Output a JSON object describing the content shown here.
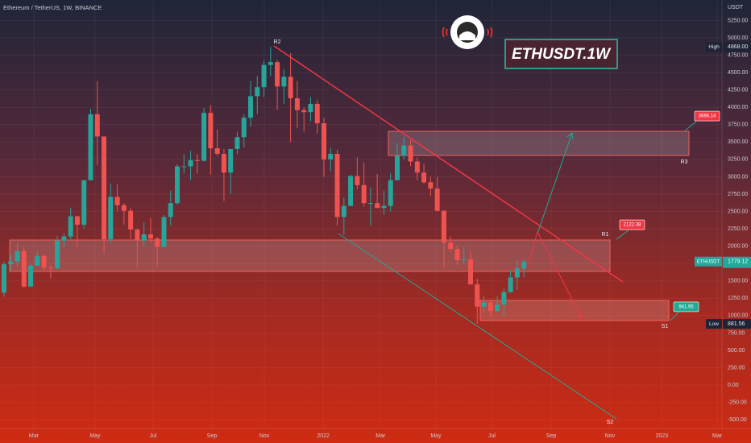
{
  "chart_data": {
    "type": "candlestick",
    "title": "Ethereum / TetherUS, 1W, BINANCE",
    "unit_label": "USDT",
    "symbol_box": "ETHUSDT.1W",
    "up_color": "#26a69a",
    "down_color": "#ef5350",
    "grid": true,
    "candles": {
      "open": [
        1330,
        1740,
        1780,
        1930,
        1420,
        1720,
        1860,
        1690,
        1680,
        2080,
        2140,
        2430,
        2310,
        2950,
        3900,
        3580,
        2100,
        2710,
        2590,
        2510,
        2240,
        2080,
        2170,
        2110,
        1990,
        2420,
        2620,
        3150,
        3150,
        3240,
        3230,
        3920,
        3410,
        3330,
        3060,
        3400,
        3570,
        3850,
        4160,
        4290,
        4610,
        4650,
        4300,
        4440,
        4130,
        3960,
        3930,
        4050,
        3770,
        3250,
        3330,
        2420,
        2580,
        3010,
        2880,
        2620,
        2620,
        2550,
        2580,
        2950,
        3300,
        3450,
        3220,
        3060,
        2920,
        2830,
        2510,
        2050,
        1960,
        1800,
        1810,
        1450,
        1130,
        1190,
        1070,
        1160,
        1340,
        1550,
        1680
      ],
      "high": [
        1780,
        1880,
        2040,
        1990,
        1740,
        1940,
        1880,
        1730,
        2150,
        2180,
        2550,
        2440,
        2950,
        3980,
        4380,
        3580,
        2900,
        2890,
        2620,
        2550,
        2250,
        2340,
        2410,
        2130,
        2450,
        2800,
        3180,
        3330,
        3370,
        3330,
        3990,
        4030,
        3680,
        3400,
        3400,
        3650,
        3900,
        4380,
        4450,
        4670,
        4868,
        4680,
        4550,
        4780,
        4380,
        4000,
        4150,
        4100,
        3850,
        3420,
        3390,
        2700,
        3030,
        3280,
        3200,
        2850,
        3040,
        2800,
        3050,
        3480,
        3580,
        3530,
        3280,
        3190,
        3000,
        3000,
        2520,
        2140,
        2020,
        2000,
        1930,
        1530,
        1280,
        1230,
        1280,
        1390,
        1650,
        1790,
        1810
      ],
      "low": [
        1270,
        1640,
        1700,
        1400,
        1410,
        1720,
        1650,
        1540,
        1670,
        2000,
        2100,
        2000,
        2250,
        2950,
        3170,
        1900,
        2050,
        2500,
        2310,
        2100,
        1700,
        2000,
        2050,
        1720,
        1990,
        2300,
        2600,
        3050,
        2950,
        3050,
        3220,
        3030,
        3300,
        2650,
        2750,
        3320,
        3420,
        3720,
        3900,
        4150,
        4450,
        3960,
        4050,
        3500,
        3700,
        3650,
        3800,
        3620,
        3000,
        3080,
        2300,
        2160,
        2580,
        2820,
        2570,
        2300,
        2550,
        2450,
        2500,
        2950,
        3250,
        3150,
        2950,
        2900,
        2720,
        2500,
        1700,
        1910,
        1730,
        1740,
        1450,
        881.56,
        1040,
        990,
        1060,
        1000,
        1330,
        1370,
        1550
      ],
      "close": [
        1740,
        1780,
        1930,
        1420,
        1720,
        1860,
        1690,
        1680,
        2080,
        2140,
        2430,
        2310,
        2950,
        3900,
        3580,
        2100,
        2710,
        2590,
        2510,
        2240,
        2080,
        2170,
        2110,
        1990,
        2420,
        2620,
        3150,
        3150,
        3240,
        3230,
        3920,
        3410,
        3330,
        3060,
        3400,
        3570,
        3850,
        4160,
        4290,
        4610,
        4650,
        4300,
        4440,
        4130,
        3960,
        3930,
        4050,
        3770,
        3250,
        3330,
        2420,
        2580,
        3010,
        2880,
        2620,
        2620,
        2550,
        2580,
        2950,
        3300,
        3450,
        3220,
        3060,
        2920,
        2830,
        2510,
        2050,
        1960,
        1800,
        1810,
        1450,
        1130,
        1190,
        1070,
        1160,
        1340,
        1550,
        1680,
        1779.12
      ]
    },
    "ylim": [
      -625,
      5545
    ],
    "yticks": [
      {
        "value": 5250,
        "label": "5250.00"
      },
      {
        "value": 5000,
        "label": "5000.00"
      },
      {
        "value": 4750,
        "label": "4750.00"
      },
      {
        "value": 4500,
        "label": "4500.00"
      },
      {
        "value": 4250,
        "label": "4250.00"
      },
      {
        "value": 4000,
        "label": "4000.00"
      },
      {
        "value": 3750,
        "label": "3750.00"
      },
      {
        "value": 3500,
        "label": "3500.00"
      },
      {
        "value": 3250,
        "label": "3250.00"
      },
      {
        "value": 3000,
        "label": "3000.00"
      },
      {
        "value": 2750,
        "label": "2750.00"
      },
      {
        "value": 2500,
        "label": "2500.00"
      },
      {
        "value": 2250,
        "label": "2250.00"
      },
      {
        "value": 2000,
        "label": "2000.00"
      },
      {
        "value": 1750,
        "label": "1750.00"
      },
      {
        "value": 1500,
        "label": "1500.00"
      },
      {
        "value": 1250,
        "label": "1250.00"
      },
      {
        "value": 1000,
        "label": "1000.00"
      },
      {
        "value": 750,
        "label": "750.00"
      },
      {
        "value": 500,
        "label": "500.00"
      },
      {
        "value": 250,
        "label": "250.00"
      },
      {
        "value": 0,
        "label": "0.00"
      },
      {
        "value": -250,
        "label": "-250.00"
      },
      {
        "value": -500,
        "label": "-500.00"
      }
    ],
    "xlim": [
      -0.6,
      107.6
    ],
    "xticks": [
      {
        "value": 4.47,
        "label": "Mar"
      },
      {
        "value": 13.66,
        "label": "May"
      },
      {
        "value": 22.37,
        "label": "Jul"
      },
      {
        "value": 31.2,
        "label": "Sep"
      },
      {
        "value": 39.06,
        "label": "Nov"
      },
      {
        "value": 47.9,
        "label": "2022"
      },
      {
        "value": 56.5,
        "label": "Mar"
      },
      {
        "value": 64.8,
        "label": "May"
      },
      {
        "value": 73.2,
        "label": "Jul"
      },
      {
        "value": 82.1,
        "label": "Sep"
      },
      {
        "value": 90.9,
        "label": "Nov"
      },
      {
        "value": 98.7,
        "label": "2023"
      },
      {
        "value": 107.0,
        "label": "Mar"
      }
    ],
    "high_marker": {
      "name": "High",
      "value": 4868,
      "label": "4868.00"
    },
    "low_marker": {
      "name": "Low",
      "value": 881.56
    },
    "last_price": {
      "name": "ETHUSDT",
      "value": 1779.12
    },
    "levels": [
      "R2",
      "R3",
      "R1",
      "S1",
      "S2"
    ],
    "targets": [
      {
        "value": 3688.14,
        "color": "#f23645"
      },
      {
        "value": 2122.38,
        "color": "#f23645"
      },
      {
        "value": 941.95,
        "color": "#22ab94"
      }
    ]
  }
}
